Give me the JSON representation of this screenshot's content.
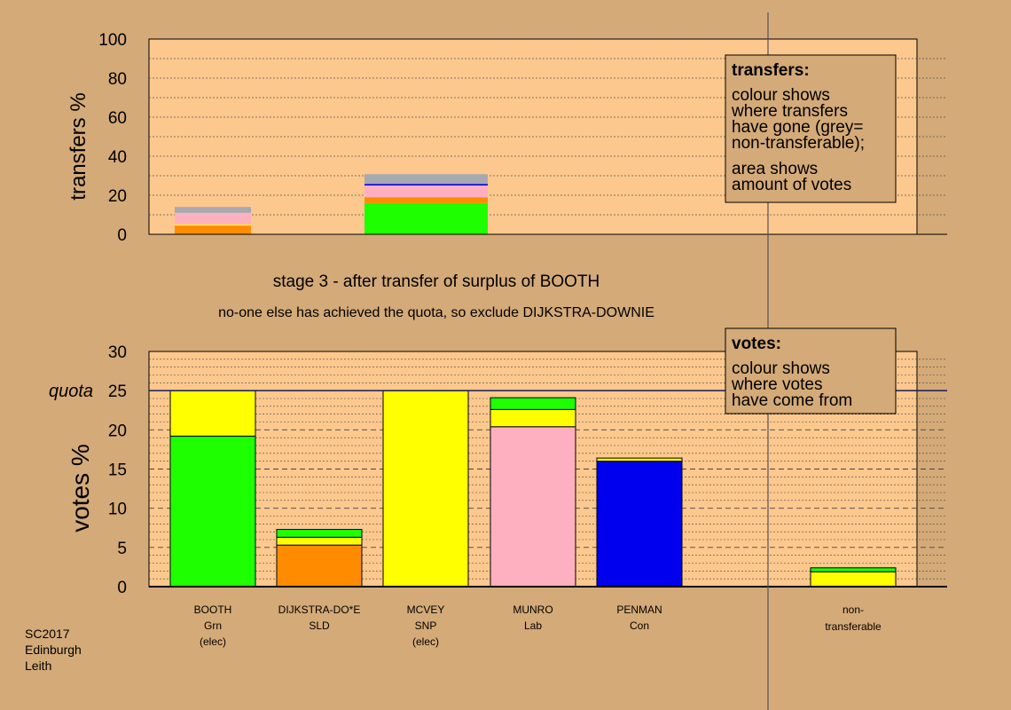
{
  "colors": {
    "background": "#d4aa78",
    "plot_background": "#fcc88e",
    "green": "#1eff00",
    "orange": "#ff8c00",
    "yellow": "#ffff00",
    "pink": "#ffb0c0",
    "blue": "#0000ee",
    "grey": "#a8a8b0"
  },
  "chart_data": [
    {
      "type": "bar",
      "stacked": true,
      "ylabel": "transfers %",
      "ylim": [
        0,
        100
      ],
      "yticks": [
        "0",
        "20",
        "40",
        "60",
        "80",
        "100"
      ],
      "bars": [
        {
          "category": "BOOTH",
          "segments": [
            {
              "color": "orange",
              "value": 4.5
            },
            {
              "color": "yellow",
              "value": 0.5
            },
            {
              "color": "pink",
              "value": 6
            },
            {
              "color": "grey",
              "value": 3
            }
          ]
        },
        {
          "category": "MCVEY",
          "segments": [
            {
              "color": "green",
              "value": 16
            },
            {
              "color": "orange",
              "value": 3
            },
            {
              "color": "pink",
              "value": 6
            },
            {
              "color": "blue",
              "value": 0.8
            },
            {
              "color": "grey",
              "value": 5
            }
          ]
        }
      ],
      "legend": {
        "title": "transfers:",
        "lines": [
          "colour shows",
          "where transfers",
          "have gone (grey=",
          "non-transferable);"
        ],
        "lines2": [
          "area shows",
          "amount of votes"
        ]
      }
    },
    {
      "type": "bar",
      "stacked": true,
      "ylabel": "votes %",
      "ylim": [
        0,
        30
      ],
      "yticks": [
        "0",
        "5",
        "10",
        "15",
        "20",
        "25",
        "30"
      ],
      "quota": 25,
      "quota_label": "quota",
      "categories": [
        {
          "name": "BOOTH",
          "party": "Grn",
          "note": "(elec)"
        },
        {
          "name": "DIJKSTRA-DO*E",
          "party": "SLD",
          "note": ""
        },
        {
          "name": "MCVEY",
          "party": "SNP",
          "note": "(elec)"
        },
        {
          "name": "MUNRO",
          "party": "Lab",
          "note": ""
        },
        {
          "name": "PENMAN",
          "party": "Con",
          "note": ""
        }
      ],
      "bars": [
        {
          "category": "BOOTH",
          "segments": [
            {
              "color": "green",
              "value": 19.2
            },
            {
              "color": "yellow",
              "value": 5.8
            }
          ]
        },
        {
          "category": "DIJKSTRA-DO*E",
          "segments": [
            {
              "color": "orange",
              "value": 5.3
            },
            {
              "color": "yellow",
              "value": 1.0
            },
            {
              "color": "green",
              "value": 1.0
            }
          ]
        },
        {
          "category": "MCVEY",
          "segments": [
            {
              "color": "yellow",
              "value": 25
            }
          ]
        },
        {
          "category": "MUNRO",
          "segments": [
            {
              "color": "pink",
              "value": 20.4
            },
            {
              "color": "yellow",
              "value": 2.2
            },
            {
              "color": "green",
              "value": 1.5
            }
          ]
        },
        {
          "category": "PENMAN",
          "segments": [
            {
              "color": "blue",
              "value": 16.0
            },
            {
              "color": "yellow",
              "value": 0.4
            }
          ]
        },
        {
          "category": "non-transferable",
          "segments": [
            {
              "color": "yellow",
              "value": 1.9
            },
            {
              "color": "green",
              "value": 0.5
            }
          ]
        }
      ],
      "nontransferable_label": [
        "non-",
        "transferable"
      ],
      "legend": {
        "title": "votes:",
        "lines": [
          "colour shows",
          "where votes",
          "have come from"
        ]
      }
    }
  ],
  "stage_title": "stage 3 - after transfer of surplus of BOOTH",
  "stage_subtitle": "no-one else has achieved the quota, so exclude DIJKSTRA-DOWNIE",
  "footer": [
    "SC2017",
    "Edinburgh",
    "Leith"
  ]
}
